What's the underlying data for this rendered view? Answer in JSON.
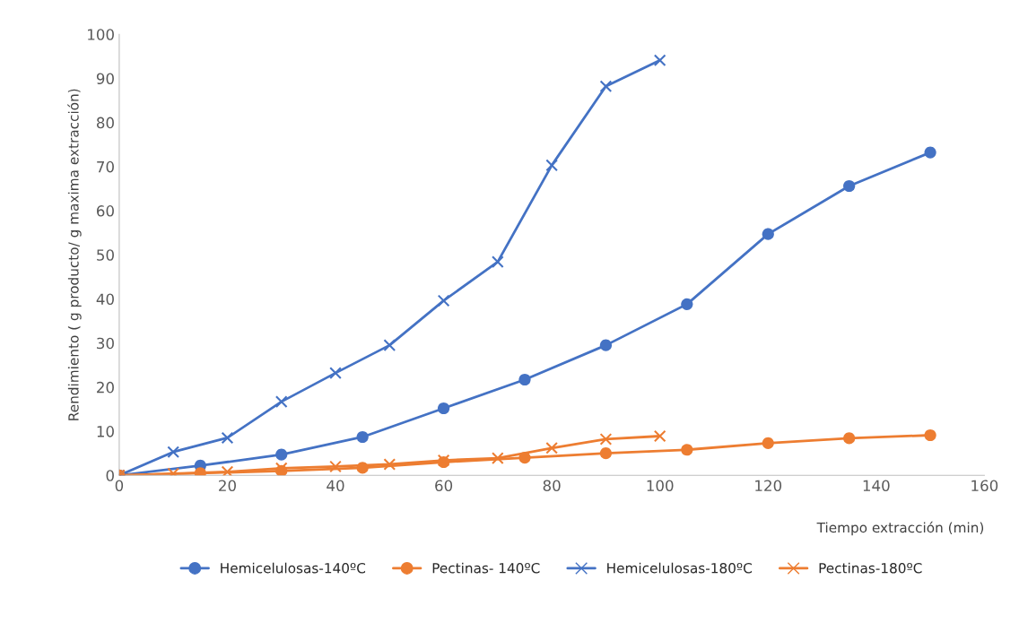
{
  "chart_data": {
    "type": "line",
    "xlabel": "Tiempo extracción (min)",
    "ylabel": "Rendimiento ( g producto/ g maxima extracción)",
    "xlim": [
      0,
      160
    ],
    "xticks": [
      0,
      20,
      40,
      60,
      80,
      100,
      120,
      140,
      160
    ],
    "ylim": [
      0,
      100
    ],
    "yticks": [
      0,
      10,
      20,
      30,
      40,
      50,
      60,
      70,
      80,
      90,
      100
    ],
    "grid": false,
    "legend": "bottom",
    "series": [
      {
        "name": "Hemicelulosas-140ºC",
        "color": "#4472c4",
        "marker": "circle",
        "x": [
          0,
          15,
          30,
          45,
          60,
          75,
          90,
          105,
          120,
          135,
          150
        ],
        "values": [
          0,
          2.2,
          4.7,
          8.7,
          15.2,
          21.7,
          29.5,
          38.8,
          54.7,
          65.6,
          73.2
        ]
      },
      {
        "name": "Pectinas- 140ºC",
        "color": "#ed7d31",
        "marker": "circle",
        "x": [
          0,
          15,
          30,
          45,
          60,
          75,
          90,
          105,
          120,
          135,
          150
        ],
        "values": [
          0,
          0.5,
          1,
          1.7,
          3,
          4,
          5,
          5.8,
          7.3,
          8.4,
          9.1
        ]
      },
      {
        "name": "Hemicelulosas-180ºC",
        "color": "#4472c4",
        "marker": "cross",
        "x": [
          0,
          10,
          20,
          30,
          40,
          50,
          60,
          70,
          80,
          90,
          100
        ],
        "values": [
          0,
          5.3,
          8.5,
          16.7,
          23.2,
          29.5,
          39.6,
          48.4,
          70.3,
          88.2,
          94.1
        ]
      },
      {
        "name": "Pectinas-180ºC",
        "color": "#ed7d31",
        "marker": "cross",
        "x": [
          0,
          10,
          20,
          30,
          40,
          50,
          60,
          70,
          80,
          90,
          100
        ],
        "values": [
          0,
          0.4,
          0.8,
          1.6,
          2,
          2.5,
          3.4,
          3.9,
          6.2,
          8.2,
          8.9
        ]
      }
    ]
  }
}
